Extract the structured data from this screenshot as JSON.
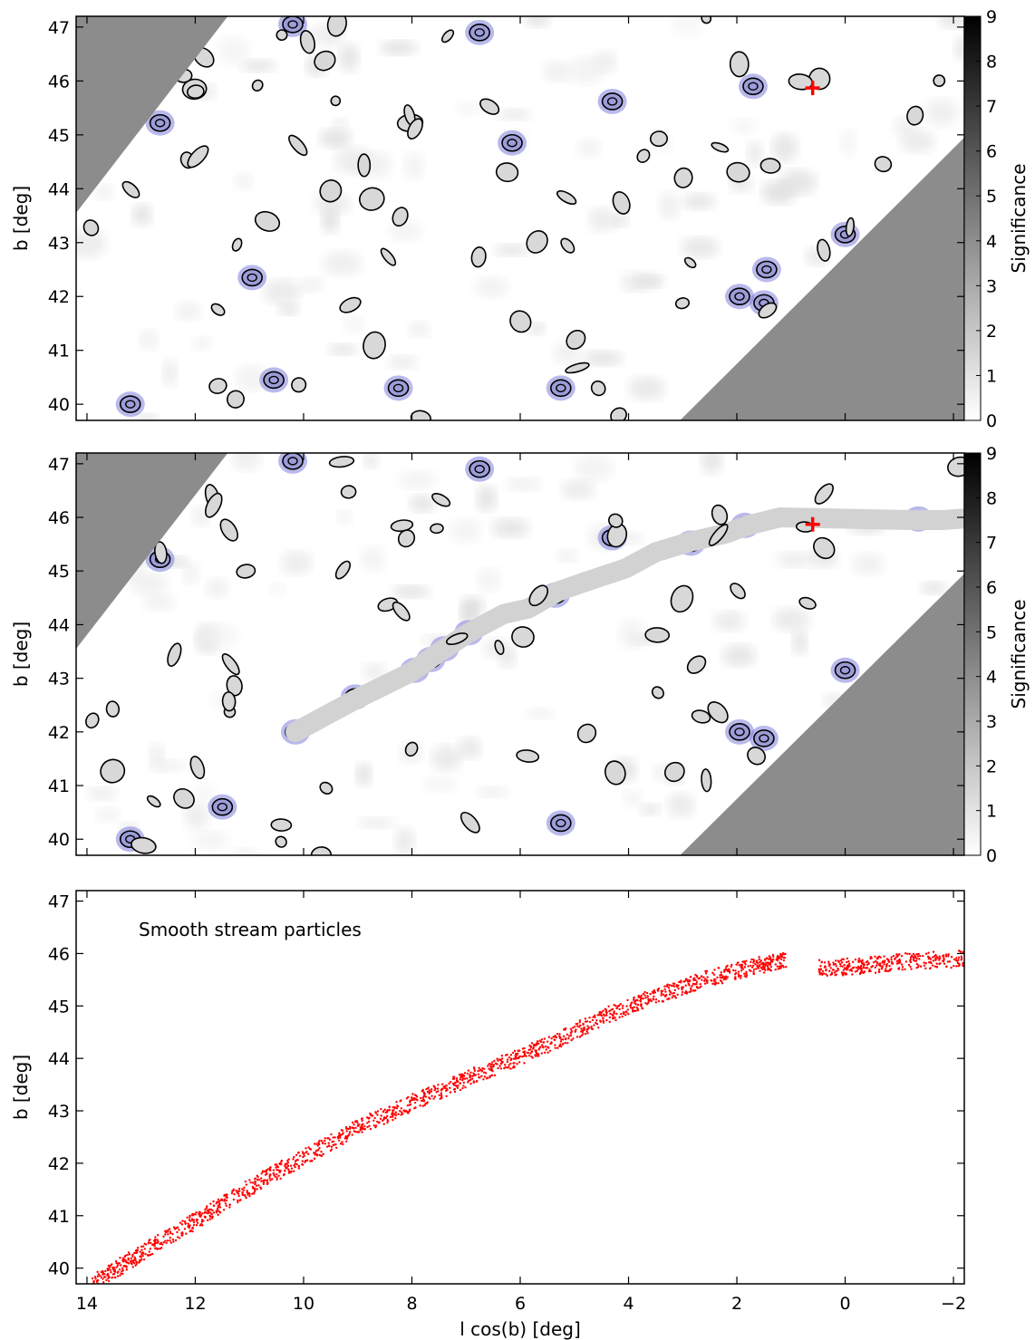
{
  "chart_data": [
    {
      "type": "heatmap",
      "ylabel": "b [deg]",
      "colorbar_label": "Significance",
      "colorbar_ticks": [
        "0",
        "1",
        "2",
        "3",
        "4",
        "5",
        "6",
        "7",
        "8",
        "9"
      ],
      "colorbar_range": [
        0,
        9
      ],
      "xlim": [
        14.2,
        -2.2
      ],
      "ylim": [
        39.7,
        47.2
      ],
      "y_ticks": [
        "40",
        "41",
        "42",
        "43",
        "44",
        "45",
        "46",
        "47"
      ],
      "masked_regions": [
        {
          "polygon": [
            [
              14.2,
              47.2
            ],
            [
              11.4,
              47.2
            ],
            [
              14.2,
              43.55
            ]
          ]
        },
        {
          "polygon": [
            [
              -2.2,
              44.95
            ],
            [
              -2.2,
              39.7
            ],
            [
              3.05,
              39.7
            ]
          ]
        }
      ],
      "colors": {
        "mask": "#8c8c8c",
        "marker": "#ff0000",
        "highlight": "#7f7fdc",
        "contour": "#000000"
      },
      "marker": {
        "symbol": "+",
        "l": 0.6,
        "b": 45.87
      },
      "highlighted_peaks": [
        {
          "l": 13.2,
          "b": 40.0
        },
        {
          "l": 12.65,
          "b": 45.22
        },
        {
          "l": 10.2,
          "b": 47.05
        },
        {
          "l": 6.75,
          "b": 46.9
        },
        {
          "l": 4.3,
          "b": 45.62
        },
        {
          "l": 6.15,
          "b": 44.85
        },
        {
          "l": 10.95,
          "b": 42.35
        },
        {
          "l": 10.55,
          "b": 40.45
        },
        {
          "l": 8.25,
          "b": 40.3
        },
        {
          "l": 5.25,
          "b": 40.3
        },
        {
          "l": 1.7,
          "b": 45.9
        },
        {
          "l": 1.95,
          "b": 42.0
        },
        {
          "l": 1.5,
          "b": 41.88
        },
        {
          "l": 0.0,
          "b": 43.15
        },
        {
          "l": 1.45,
          "b": 42.5
        }
      ]
    },
    {
      "type": "heatmap",
      "ylabel": "b [deg]",
      "colorbar_label": "Significance",
      "colorbar_ticks": [
        "0",
        "1",
        "2",
        "3",
        "4",
        "5",
        "6",
        "7",
        "8",
        "9"
      ],
      "colorbar_range": [
        0,
        9
      ],
      "xlim": [
        14.2,
        -2.2
      ],
      "ylim": [
        39.7,
        47.2
      ],
      "y_ticks": [
        "40",
        "41",
        "42",
        "43",
        "44",
        "45",
        "46",
        "47"
      ],
      "masked_regions": [
        {
          "polygon": [
            [
              14.2,
              47.2
            ],
            [
              11.4,
              47.2
            ],
            [
              14.2,
              43.55
            ]
          ]
        },
        {
          "polygon": [
            [
              -2.2,
              44.95
            ],
            [
              -2.2,
              39.7
            ],
            [
              3.05,
              39.7
            ]
          ]
        }
      ],
      "colors": {
        "mask": "#8c8c8c",
        "marker": "#ff0000",
        "highlight": "#7f7fdc",
        "contour": "#000000"
      },
      "marker": {
        "symbol": "+",
        "l": 0.6,
        "b": 45.87
      },
      "stream_track": [
        [
          10.15,
          42.0
        ],
        [
          9.05,
          42.6
        ],
        [
          8.0,
          43.12
        ],
        [
          7.55,
          43.45
        ],
        [
          6.95,
          43.85
        ],
        [
          6.3,
          44.2
        ],
        [
          5.85,
          44.3
        ],
        [
          5.3,
          44.62
        ],
        [
          4.85,
          44.78
        ],
        [
          4.05,
          45.05
        ],
        [
          3.5,
          45.35
        ],
        [
          2.85,
          45.55
        ],
        [
          2.2,
          45.7
        ],
        [
          1.8,
          45.85
        ],
        [
          1.2,
          46.0
        ],
        [
          -1.2,
          45.95
        ],
        [
          -1.8,
          45.95
        ],
        [
          -2.2,
          45.98
        ]
      ],
      "highlighted_peaks": [
        {
          "l": 13.2,
          "b": 40.0
        },
        {
          "l": 12.65,
          "b": 45.22
        },
        {
          "l": 10.2,
          "b": 47.05
        },
        {
          "l": 6.75,
          "b": 46.9
        },
        {
          "l": 4.3,
          "b": 45.62
        },
        {
          "l": 11.5,
          "b": 40.6
        },
        {
          "l": 10.15,
          "b": 42.0
        },
        {
          "l": 9.05,
          "b": 42.65
        },
        {
          "l": 7.95,
          "b": 43.15
        },
        {
          "l": 7.65,
          "b": 43.35
        },
        {
          "l": 7.4,
          "b": 43.55
        },
        {
          "l": 6.95,
          "b": 43.85
        },
        {
          "l": 5.35,
          "b": 44.55
        },
        {
          "l": 5.25,
          "b": 40.3
        },
        {
          "l": 2.85,
          "b": 45.52
        },
        {
          "l": 1.85,
          "b": 45.85
        },
        {
          "l": -1.35,
          "b": 45.97
        },
        {
          "l": 1.95,
          "b": 42.0
        },
        {
          "l": 1.5,
          "b": 41.88
        },
        {
          "l": 0.0,
          "b": 43.15
        }
      ]
    },
    {
      "type": "scatter",
      "annotation": "Smooth stream particles",
      "xlabel": "l cos(b) [deg]",
      "ylabel": "b [deg]",
      "xlim": [
        14.2,
        -2.2
      ],
      "ylim": [
        39.7,
        47.2
      ],
      "x_ticks": [
        "14",
        "12",
        "10",
        "8",
        "6",
        "4",
        "2",
        "0",
        "−2"
      ],
      "y_ticks": [
        "40",
        "41",
        "42",
        "43",
        "44",
        "45",
        "46",
        "47"
      ],
      "point_color": "#ff0000",
      "series": [
        {
          "points": [
            [
              13.9,
              39.7
            ],
            [
              13.2,
              40.15
            ],
            [
              12.4,
              40.65
            ],
            [
              11.6,
              41.15
            ],
            [
              10.7,
              41.72
            ],
            [
              9.8,
              42.22
            ],
            [
              8.9,
              42.72
            ],
            [
              8.0,
              43.15
            ],
            [
              7.1,
              43.55
            ],
            [
              6.2,
              43.95
            ],
            [
              5.3,
              44.35
            ],
            [
              4.4,
              44.82
            ],
            [
              3.5,
              45.18
            ],
            [
              2.6,
              45.5
            ],
            [
              1.7,
              45.75
            ],
            [
              1.1,
              45.88
            ]
          ]
        },
        {
          "points": [
            [
              0.5,
              45.72
            ],
            [
              -0.3,
              45.76
            ],
            [
              -1.1,
              45.85
            ],
            [
              -2.2,
              45.9
            ]
          ]
        }
      ]
    }
  ]
}
